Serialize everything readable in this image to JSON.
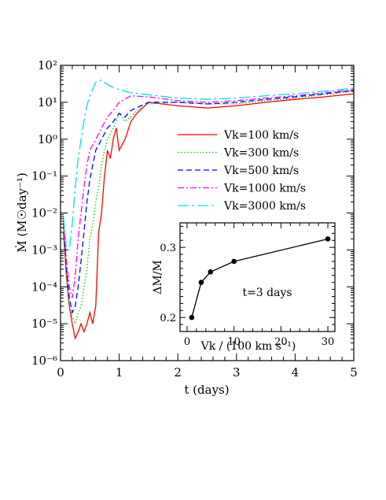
{
  "chart_data": [
    {
      "type": "line",
      "xlabel": "t (days)",
      "ylabel": "Ṁ (M☉day⁻¹)",
      "xlim": [
        0,
        5
      ],
      "ylim": [
        1e-06,
        100
      ],
      "yscale": "log",
      "x_ticks": [
        "0",
        "1",
        "2",
        "3",
        "4",
        "5"
      ],
      "y_ticks": [
        "10⁻⁶",
        "10⁻⁵",
        "10⁻⁴",
        "10⁻³",
        "10⁻²",
        "10⁻¹",
        "10⁰",
        "10¹",
        "10²"
      ],
      "legend_placement": "center-right",
      "series": [
        {
          "name": "Vk=100 km/s",
          "color": "#ff0000",
          "dash": "solid",
          "x": [
            0.05,
            0.1,
            0.15,
            0.2,
            0.25,
            0.3,
            0.35,
            0.4,
            0.45,
            0.5,
            0.55,
            0.6,
            0.65,
            0.7,
            0.75,
            0.8,
            0.85,
            0.9,
            0.95,
            1.0,
            1.1,
            1.2,
            1.3,
            1.5,
            2.0,
            2.5,
            3.0,
            3.5,
            4.0,
            4.5,
            5.0
          ],
          "y": [
            0.003,
            0.0002,
            3e-05,
            1e-05,
            4e-06,
            6e-06,
            1e-05,
            6e-06,
            1e-05,
            2e-05,
            1e-05,
            3e-05,
            0.003,
            0.01,
            0.1,
            0.5,
            0.3,
            1.0,
            2.0,
            0.5,
            1.0,
            3.0,
            5.0,
            10,
            8,
            7,
            8,
            10,
            12,
            14,
            17
          ]
        },
        {
          "name": "Vk=300 km/s",
          "color": "#00cc00",
          "dash": "dotted",
          "x": [
            0.05,
            0.1,
            0.15,
            0.2,
            0.25,
            0.3,
            0.35,
            0.4,
            0.45,
            0.5,
            0.55,
            0.6,
            0.65,
            0.7,
            0.75,
            0.8,
            0.9,
            1.0,
            1.1,
            1.2,
            1.3,
            1.5,
            2.0,
            2.5,
            3.0,
            3.5,
            4.0,
            4.5,
            5.0
          ],
          "y": [
            0.004,
            0.0002,
            3e-05,
            1.5e-05,
            1e-05,
            2e-05,
            3e-05,
            0.0001,
            0.0003,
            0.002,
            0.005,
            0.02,
            0.05,
            0.2,
            0.5,
            1.0,
            2.0,
            5.0,
            3.0,
            4.0,
            6.0,
            9,
            10,
            9,
            9,
            11,
            13,
            16,
            20
          ]
        },
        {
          "name": "Vk=500 km/s",
          "color": "#0000ff",
          "dash": "dashed",
          "x": [
            0.05,
            0.1,
            0.15,
            0.2,
            0.25,
            0.3,
            0.35,
            0.4,
            0.45,
            0.5,
            0.55,
            0.6,
            0.7,
            0.8,
            0.9,
            1.0,
            1.1,
            1.2,
            1.5,
            2.0,
            2.5,
            3.0,
            3.5,
            4.0,
            4.5,
            5.0
          ],
          "y": [
            0.005,
            0.0003,
            5e-05,
            2e-05,
            3e-05,
            0.0001,
            0.0005,
            0.003,
            0.02,
            0.08,
            0.2,
            0.5,
            1.0,
            2.0,
            3.0,
            5.0,
            4.0,
            6.0,
            10,
            10,
            9,
            10,
            12,
            14,
            17,
            21
          ]
        },
        {
          "name": "Vk=1000 km/s",
          "color": "#ff00ff",
          "dash": "dashdot",
          "x": [
            0.05,
            0.1,
            0.15,
            0.2,
            0.25,
            0.3,
            0.35,
            0.4,
            0.45,
            0.5,
            0.6,
            0.7,
            0.8,
            0.9,
            1.0,
            1.2,
            1.5,
            2.0,
            2.5,
            3.0,
            3.5,
            4.0,
            4.5,
            5.0
          ],
          "y": [
            0.006,
            0.0005,
            0.0001,
            5e-05,
            0.0002,
            0.002,
            0.01,
            0.05,
            0.2,
            0.5,
            1.0,
            2.0,
            4.0,
            6.0,
            10,
            15,
            14,
            11,
            10,
            11,
            13,
            15,
            18,
            22
          ]
        },
        {
          "name": "Vk=3000 km/s",
          "color": "#00e0e0",
          "dash": "longdashdot",
          "x": [
            0.05,
            0.1,
            0.15,
            0.2,
            0.25,
            0.3,
            0.35,
            0.4,
            0.45,
            0.5,
            0.6,
            0.7,
            0.8,
            0.9,
            1.0,
            1.2,
            1.5,
            2.0,
            2.5,
            3.0,
            3.5,
            4.0,
            4.5,
            5.0
          ],
          "y": [
            0.008,
            0.001,
            0.001,
            0.005,
            0.05,
            0.3,
            1.0,
            3.0,
            8.0,
            15,
            35,
            40,
            30,
            25,
            22,
            18,
            16,
            13,
            12,
            13,
            15,
            17,
            20,
            24
          ]
        }
      ]
    },
    {
      "type": "line",
      "xlabel": "Vk / (100 km s⁻¹)",
      "ylabel": "ΔM/M",
      "xlim": [
        -1.5,
        31.5
      ],
      "ylim": [
        0.18,
        0.335
      ],
      "x_ticks": [
        "0",
        "10",
        "20",
        "30"
      ],
      "y_ticks": [
        "0.2",
        "0.3"
      ],
      "annotation": "t=3 days",
      "series": [
        {
          "name": "",
          "color": "#000000",
          "x": [
            1,
            3,
            5,
            10,
            30
          ],
          "y": [
            0.2,
            0.25,
            0.265,
            0.28,
            0.312
          ]
        }
      ]
    }
  ]
}
